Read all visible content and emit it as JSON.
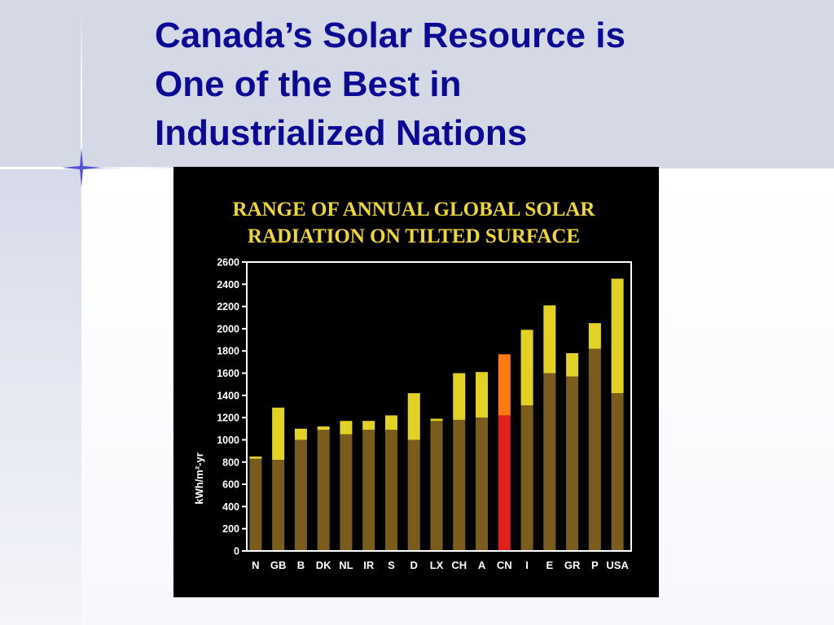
{
  "slide": {
    "title": "Canada’s Solar Resource is\nOne of the Best in\nIndustrialized Nations"
  },
  "colors": {
    "title": "#0a0a96",
    "bar_base": "#7a5c1c",
    "bar_range": "#e3d226",
    "bar_base_highlight": "#e0201a",
    "bar_range_highlight": "#ff7a10",
    "chart_title": "#f0d830",
    "axis": "#ffffff"
  },
  "chart_data": {
    "type": "bar",
    "title": "RANGE OF ANNUAL GLOBAL SOLAR\nRADIATION ON TILTED SURFACE",
    "xlabel": "",
    "ylabel": "kWh/m²-yr",
    "ylim": [
      0,
      2600
    ],
    "yticks": [
      0,
      200,
      400,
      600,
      800,
      1000,
      1200,
      1400,
      1600,
      1800,
      2000,
      2200,
      2400,
      2600
    ],
    "grid": false,
    "highlight": "CN",
    "categories": [
      "N",
      "GB",
      "B",
      "DK",
      "NL",
      "IR",
      "S",
      "D",
      "LX",
      "CH",
      "A",
      "CN",
      "I",
      "E",
      "GR",
      "P",
      "USA"
    ],
    "series": [
      {
        "values": [
          830,
          820,
          1000,
          1090,
          1050,
          1090,
          1090,
          1000,
          1170,
          1180,
          1200,
          1220,
          1310,
          1600,
          1570,
          1820,
          1420
        ]
      },
      {
        "values": [
          850,
          1290,
          1100,
          1120,
          1170,
          1170,
          1220,
          1420,
          1190,
          1600,
          1610,
          1770,
          1990,
          2210,
          1780,
          2050,
          2450
        ]
      }
    ]
  }
}
